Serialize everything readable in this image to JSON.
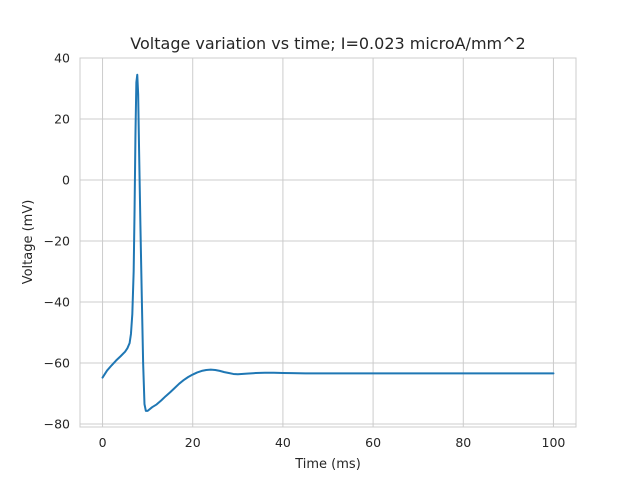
{
  "chart_data": {
    "type": "line",
    "title": "Voltage variation vs time; I=0.023 microA/mm^2",
    "xlabel": "Time (ms)",
    "ylabel": "Voltage (mV)",
    "xlim": [
      -5,
      105
    ],
    "ylim": [
      -81,
      40
    ],
    "xticks": [
      0,
      20,
      40,
      60,
      80,
      100
    ],
    "yticks": [
      40,
      20,
      0,
      -20,
      -40,
      -60,
      -80
    ],
    "xtick_labels": [
      "0",
      "20",
      "40",
      "60",
      "80",
      "100"
    ],
    "ytick_labels": [
      "40",
      "20",
      "0",
      "−20",
      "−40",
      "−60",
      "−80"
    ],
    "grid": true,
    "legend": "none",
    "series": [
      {
        "color": "#1f77b4",
        "x": [
          0,
          1,
          2,
          3,
          4,
          5,
          5.5,
          6,
          6.3,
          6.6,
          6.9,
          7.1,
          7.3,
          7.5,
          7.7,
          7.9,
          8.1,
          8.4,
          8.7,
          9.0,
          9.3,
          9.6,
          10,
          11,
          12,
          13,
          14,
          15,
          16,
          17,
          18,
          19,
          20,
          21,
          22,
          23,
          24,
          25,
          26,
          27,
          28,
          29,
          30,
          32,
          34,
          36,
          38,
          40,
          42,
          45,
          50,
          60,
          70,
          80,
          90,
          100
        ],
        "y": [
          -64.8,
          -62.5,
          -60.8,
          -59.2,
          -57.8,
          -56.3,
          -55.2,
          -53.5,
          -50.5,
          -44,
          -30,
          -10,
          15,
          32,
          34.5,
          28,
          10,
          -15,
          -38,
          -60,
          -73.5,
          -75.7,
          -75.7,
          -74.5,
          -73.6,
          -72.3,
          -70.9,
          -69.6,
          -68.2,
          -66.8,
          -65.6,
          -64.6,
          -63.8,
          -63.1,
          -62.6,
          -62.3,
          -62.2,
          -62.3,
          -62.6,
          -63,
          -63.3,
          -63.6,
          -63.7,
          -63.5,
          -63.3,
          -63.2,
          -63.2,
          -63.3,
          -63.35,
          -63.4,
          -63.4,
          -63.4,
          -63.4,
          -63.4,
          -63.4,
          -63.4
        ]
      }
    ]
  }
}
